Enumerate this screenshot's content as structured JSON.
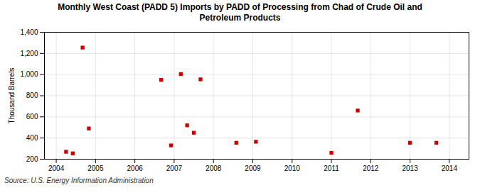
{
  "chart_data": {
    "type": "scatter",
    "title": "Monthly West Coast (PADD 5) Imports by PADD of Processing from Chad of Crude Oil and\nPetroleum Products",
    "ylabel": "Thousand Barrels",
    "source": "Source: U.S. Energy Information Administration",
    "x": [
      2004.25,
      2004.42,
      2004.67,
      2004.83,
      2006.67,
      2006.92,
      2007.17,
      2007.33,
      2007.5,
      2007.67,
      2008.58,
      2009.08,
      2011.0,
      2011.67,
      2013.0,
      2013.67
    ],
    "values": [
      270,
      255,
      1255,
      490,
      950,
      330,
      1005,
      520,
      450,
      955,
      355,
      365,
      260,
      660,
      355,
      355
    ],
    "color": "#cc0000",
    "marker": "square",
    "xlim": [
      2003.7,
      2014.5
    ],
    "xticks": [
      2004,
      2005,
      2006,
      2007,
      2008,
      2009,
      2010,
      2011,
      2012,
      2013,
      2014
    ],
    "ylim": [
      200,
      1400
    ],
    "yticks": [
      200,
      400,
      600,
      800,
      {
        "value": 1000,
        "label": "1,000"
      },
      {
        "value": 1200,
        "label": "1,200"
      },
      {
        "value": 1400,
        "label": "1,400"
      }
    ],
    "grid": true
  }
}
